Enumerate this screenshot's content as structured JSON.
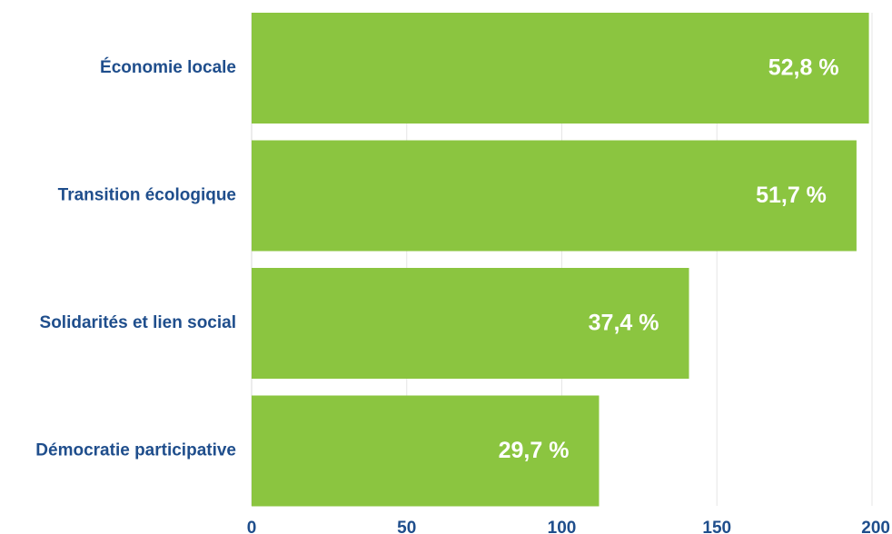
{
  "chart_data": {
    "type": "bar",
    "orientation": "horizontal",
    "categories": [
      "Économie locale",
      "Transition écologique",
      "Solidarités et lien social",
      "Démocratie participative"
    ],
    "values": [
      199,
      195,
      141,
      112
    ],
    "data_labels": [
      "52,8 %",
      "51,7 %",
      "37,4 %",
      "29,7 %"
    ],
    "xlim": [
      0,
      200
    ],
    "xticks": [
      "0",
      "50",
      "100",
      "150",
      "200"
    ],
    "xtick_values": [
      0,
      50,
      100,
      150,
      200
    ],
    "grid": true,
    "legend": "none",
    "title": "",
    "xlabel": "",
    "ylabel": "",
    "colors": {
      "bar": "#8bc540",
      "label": "#1f4e8c",
      "value_label": "#ffffff",
      "grid": "#e6e6e6"
    }
  }
}
